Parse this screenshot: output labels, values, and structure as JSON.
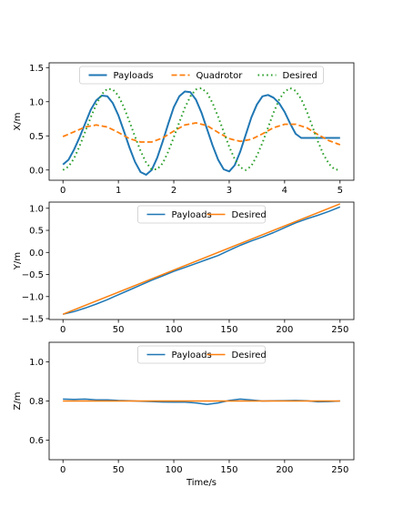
{
  "chart_data": [
    {
      "type": "line",
      "xlabel": "",
      "ylabel": "X/m",
      "xlim": [
        -0.25,
        5.25
      ],
      "ylim": [
        -0.15,
        1.57
      ],
      "xticks": [
        0,
        1,
        2,
        3,
        4,
        5
      ],
      "yticks": [
        0.0,
        0.5,
        1.0,
        1.5
      ],
      "ytick_labels": [
        "0.0",
        "0.5",
        "1.0",
        "1.5"
      ],
      "legend": {
        "placement": "upper-center",
        "ncol": 3
      },
      "series": [
        {
          "name": "Payloads",
          "color": "#1f77b4",
          "style": "solid",
          "width": 2,
          "x": [
            0,
            0.1,
            0.2,
            0.3,
            0.4,
            0.5,
            0.6,
            0.7,
            0.8,
            0.9,
            1.0,
            1.1,
            1.2,
            1.3,
            1.4,
            1.5,
            1.6,
            1.7,
            1.8,
            1.9,
            2.0,
            2.1,
            2.2,
            2.3,
            2.4,
            2.5,
            2.6,
            2.7,
            2.8,
            2.9,
            3.0,
            3.1,
            3.2,
            3.3,
            3.4,
            3.5,
            3.6,
            3.7,
            3.8,
            3.9,
            4.0,
            4.1,
            4.2,
            4.3,
            4.4,
            4.5,
            4.6,
            4.7,
            4.8,
            4.9,
            5.0
          ],
          "y": [
            0.08,
            0.15,
            0.3,
            0.48,
            0.68,
            0.88,
            1.02,
            1.09,
            1.08,
            0.98,
            0.8,
            0.57,
            0.33,
            0.12,
            -0.03,
            -0.07,
            0.0,
            0.18,
            0.42,
            0.68,
            0.92,
            1.08,
            1.15,
            1.14,
            1.03,
            0.84,
            0.6,
            0.36,
            0.15,
            0.01,
            -0.02,
            0.07,
            0.27,
            0.52,
            0.77,
            0.96,
            1.08,
            1.1,
            1.06,
            0.98,
            0.85,
            0.68,
            0.53,
            0.47,
            0.47,
            0.47,
            0.47,
            0.47,
            0.47,
            0.47,
            0.47
          ]
        },
        {
          "name": "Quadrotor",
          "color": "#ff7f0e",
          "style": "dashed",
          "width": 1.8,
          "x": [
            0,
            0.2,
            0.4,
            0.6,
            0.8,
            1.0,
            1.2,
            1.4,
            1.6,
            1.8,
            2.0,
            2.2,
            2.4,
            2.6,
            2.8,
            3.0,
            3.2,
            3.4,
            3.6,
            3.8,
            4.0,
            4.2,
            4.4,
            4.6,
            4.8,
            5.0
          ],
          "y": [
            0.49,
            0.56,
            0.63,
            0.66,
            0.63,
            0.55,
            0.46,
            0.41,
            0.41,
            0.47,
            0.57,
            0.66,
            0.69,
            0.65,
            0.55,
            0.46,
            0.42,
            0.45,
            0.53,
            0.62,
            0.67,
            0.67,
            0.62,
            0.52,
            0.43,
            0.37
          ]
        },
        {
          "name": "Desired",
          "color": "#2ca02c",
          "style": "dotted",
          "width": 2,
          "x": [
            0,
            0.1,
            0.2,
            0.3,
            0.4,
            0.5,
            0.6,
            0.7,
            0.8,
            0.9,
            1.0,
            1.1,
            1.2,
            1.3,
            1.4,
            1.5,
            1.6,
            1.7,
            1.8,
            1.9,
            2.0,
            2.1,
            2.2,
            2.3,
            2.4,
            2.5,
            2.6,
            2.7,
            2.8,
            2.9,
            3.0,
            3.1,
            3.2,
            3.3,
            3.4,
            3.5,
            3.6,
            3.7,
            3.8,
            3.9,
            4.0,
            4.1,
            4.2,
            4.3,
            4.4,
            4.5,
            4.6,
            4.7,
            4.8,
            4.9,
            5.0
          ],
          "y": [
            0.0,
            0.05,
            0.17,
            0.35,
            0.56,
            0.77,
            0.96,
            1.11,
            1.19,
            1.18,
            1.09,
            0.92,
            0.71,
            0.49,
            0.28,
            0.11,
            0.01,
            0.01,
            0.1,
            0.27,
            0.48,
            0.7,
            0.91,
            1.08,
            1.18,
            1.2,
            1.13,
            0.98,
            0.78,
            0.56,
            0.34,
            0.16,
            0.04,
            0.0,
            0.06,
            0.21,
            0.4,
            0.62,
            0.84,
            1.03,
            1.15,
            1.2,
            1.16,
            1.04,
            0.86,
            0.64,
            0.42,
            0.23,
            0.09,
            0.01,
            0.0
          ]
        }
      ]
    },
    {
      "type": "line",
      "xlabel": "",
      "ylabel": "Y/m",
      "xlim": [
        -12.5,
        262.5
      ],
      "ylim": [
        -1.52,
        1.14
      ],
      "xticks": [
        0,
        50,
        100,
        150,
        200,
        250
      ],
      "yticks": [
        -1.5,
        -1.0,
        -0.5,
        0.0,
        0.5,
        1.0
      ],
      "ytick_labels": [
        "−1.5",
        "−1.0",
        "−0.5",
        "0.0",
        "0.5",
        "1.0"
      ],
      "legend": {
        "placement": "upper-center",
        "ncol": 2
      },
      "series": [
        {
          "name": "Payloads",
          "color": "#1f77b4",
          "style": "solid",
          "width": 1.5,
          "x": [
            0,
            10,
            20,
            30,
            40,
            50,
            60,
            70,
            80,
            90,
            100,
            110,
            120,
            130,
            140,
            150,
            160,
            170,
            180,
            190,
            200,
            210,
            220,
            230,
            240,
            250
          ],
          "y": [
            -1.4,
            -1.34,
            -1.26,
            -1.17,
            -1.07,
            -0.96,
            -0.85,
            -0.74,
            -0.63,
            -0.53,
            -0.43,
            -0.34,
            -0.25,
            -0.16,
            -0.07,
            0.05,
            0.16,
            0.26,
            0.35,
            0.45,
            0.56,
            0.67,
            0.76,
            0.84,
            0.93,
            1.03
          ]
        },
        {
          "name": "Desired",
          "color": "#ff7f0e",
          "style": "solid",
          "width": 1.5,
          "x": [
            0,
            250
          ],
          "y": [
            -1.4,
            1.1
          ]
        }
      ]
    },
    {
      "type": "line",
      "xlabel": "Time/s",
      "ylabel": "Z/m",
      "xlim": [
        -12.5,
        262.5
      ],
      "ylim": [
        0.5,
        1.1
      ],
      "xticks": [
        0,
        50,
        100,
        150,
        200,
        250
      ],
      "yticks": [
        0.6,
        0.8,
        1.0
      ],
      "ytick_labels": [
        "0.6",
        "0.8",
        "1.0"
      ],
      "legend": {
        "placement": "upper-center",
        "ncol": 2
      },
      "series": [
        {
          "name": "Payloads",
          "color": "#1f77b4",
          "style": "solid",
          "width": 1.5,
          "x": [
            0,
            10,
            20,
            30,
            40,
            50,
            60,
            70,
            80,
            90,
            100,
            110,
            120,
            130,
            140,
            150,
            160,
            170,
            180,
            190,
            200,
            210,
            220,
            230,
            240,
            250
          ],
          "y": [
            0.81,
            0.808,
            0.81,
            0.806,
            0.806,
            0.803,
            0.801,
            0.799,
            0.797,
            0.795,
            0.794,
            0.794,
            0.79,
            0.783,
            0.79,
            0.803,
            0.81,
            0.805,
            0.8,
            0.801,
            0.802,
            0.803,
            0.801,
            0.796,
            0.797,
            0.8
          ]
        },
        {
          "name": "Desired",
          "color": "#ff7f0e",
          "style": "solid",
          "width": 1.5,
          "x": [
            0,
            250
          ],
          "y": [
            0.8,
            0.8
          ]
        }
      ]
    }
  ]
}
